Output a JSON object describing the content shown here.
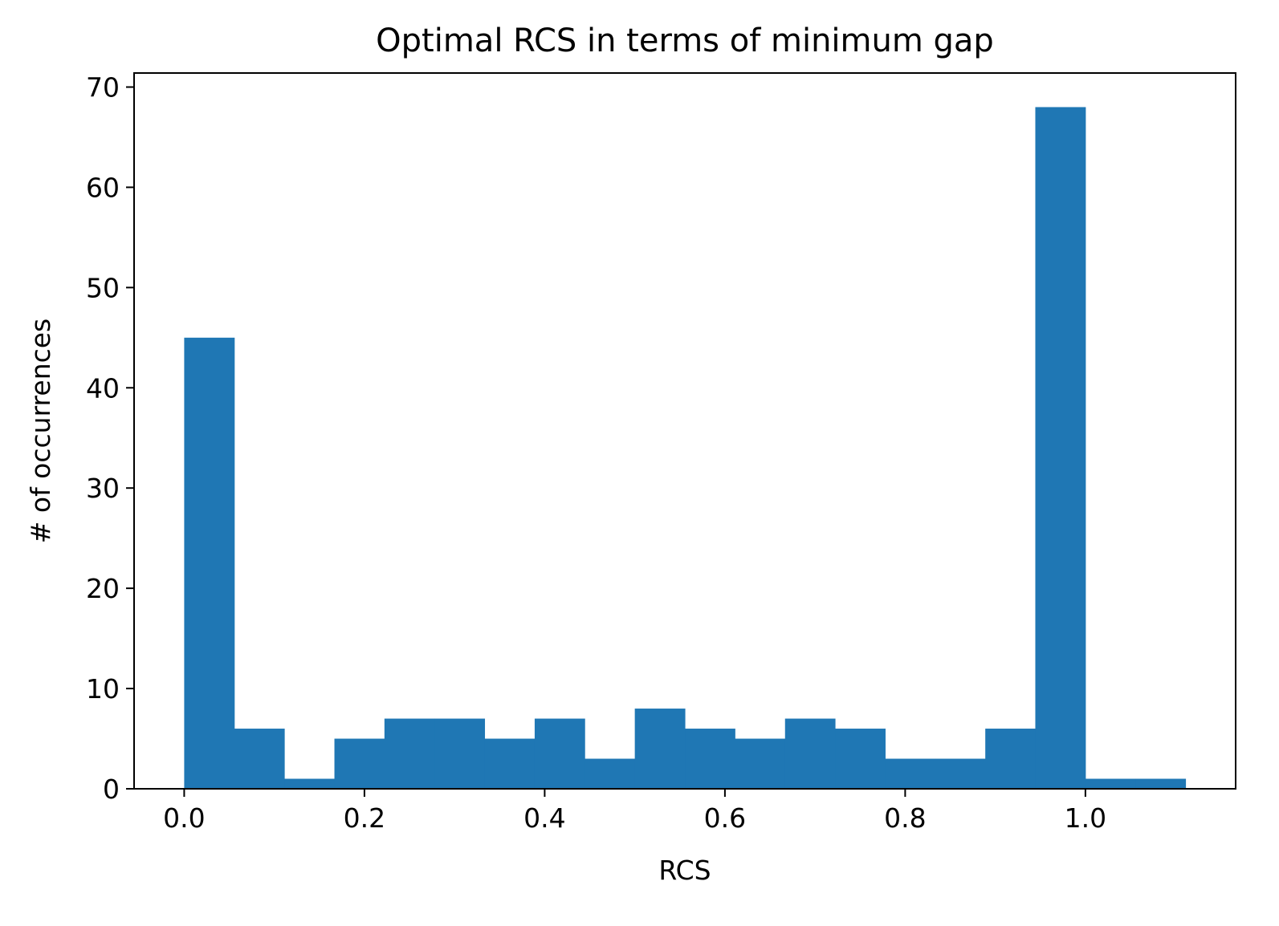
{
  "chart_data": {
    "type": "bar",
    "title": "Optimal RCS in terms of minimum gap",
    "xlabel": "RCS",
    "ylabel": "# of occurrences",
    "bar_color": "#1f77b4",
    "xlim": [
      -0.0556,
      1.1667
    ],
    "ylim": [
      0,
      71.4
    ],
    "grid": false,
    "x_ticks": [
      {
        "value": 0.0,
        "label": "0.0"
      },
      {
        "value": 0.2,
        "label": "0.2"
      },
      {
        "value": 0.4,
        "label": "0.4"
      },
      {
        "value": 0.6,
        "label": "0.6"
      },
      {
        "value": 0.8,
        "label": "0.8"
      },
      {
        "value": 1.0,
        "label": "1.0"
      }
    ],
    "y_ticks": [
      {
        "value": 0,
        "label": "0"
      },
      {
        "value": 10,
        "label": "10"
      },
      {
        "value": 20,
        "label": "20"
      },
      {
        "value": 30,
        "label": "30"
      },
      {
        "value": 40,
        "label": "40"
      },
      {
        "value": 50,
        "label": "50"
      },
      {
        "value": 60,
        "label": "60"
      },
      {
        "value": 70,
        "label": "70"
      }
    ],
    "bin_edges": [
      0.0,
      0.0556,
      0.1111,
      0.1667,
      0.2222,
      0.2778,
      0.3333,
      0.3889,
      0.4444,
      0.5,
      0.5556,
      0.6111,
      0.6667,
      0.7222,
      0.7778,
      0.8333,
      0.8889,
      0.9444,
      1.0,
      1.0556,
      1.1111
    ],
    "values": [
      45,
      6,
      1,
      5,
      7,
      7,
      5,
      7,
      3,
      8,
      6,
      5,
      7,
      6,
      3,
      3,
      6,
      68,
      1,
      1
    ]
  }
}
